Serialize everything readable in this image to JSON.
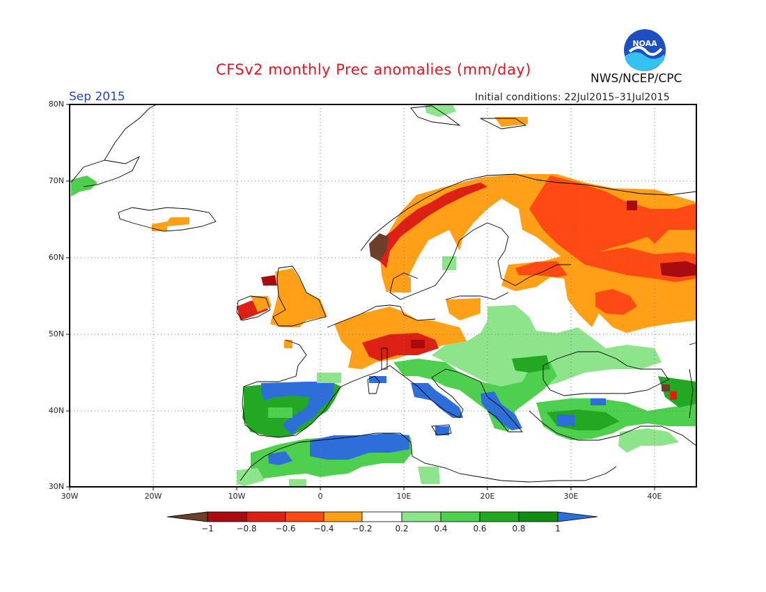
{
  "header": {
    "title": "CFSv2 monthly Prec anomalies (mm/day)",
    "month": "Sep 2015",
    "initial_conditions": "Initial conditions: 22Jul2015–31Jul2015",
    "agency": "NWS/NCEP/CPC",
    "logo_text": "NOAA"
  },
  "map": {
    "lat_labels": [
      "80N",
      "70N",
      "60N",
      "50N",
      "40N",
      "30N"
    ],
    "lon_labels": [
      "30W",
      "20W",
      "10W",
      "0",
      "10E",
      "20E",
      "30E",
      "40E"
    ],
    "extent": {
      "lon": [
        -30,
        45
      ],
      "lat": [
        30,
        80
      ]
    },
    "grid": "dotted"
  },
  "colorbar": {
    "labels": [
      "−1",
      "−0.8",
      "−0.6",
      "−0.4",
      "−0.2",
      "0.2",
      "0.4",
      "0.6",
      "0.8",
      "1"
    ],
    "colors": [
      "#6b3f2a",
      "#a80c10",
      "#dd2014",
      "#ff4a14",
      "#ffa018",
      "#ffffff",
      "#8ee48a",
      "#4ed04e",
      "#22a822",
      "#118e11",
      "#2e6ed8"
    ]
  },
  "colors": {
    "brown": "#6b3f2a",
    "dark_red": "#a80c10",
    "red": "#dd2014",
    "red_orange": "#ff4a14",
    "orange": "#ffa018",
    "light_green": "#8ee48a",
    "green": "#4ed04e",
    "mid_green": "#22a822",
    "dark_green": "#118e11",
    "blue": "#2e6ed8"
  }
}
